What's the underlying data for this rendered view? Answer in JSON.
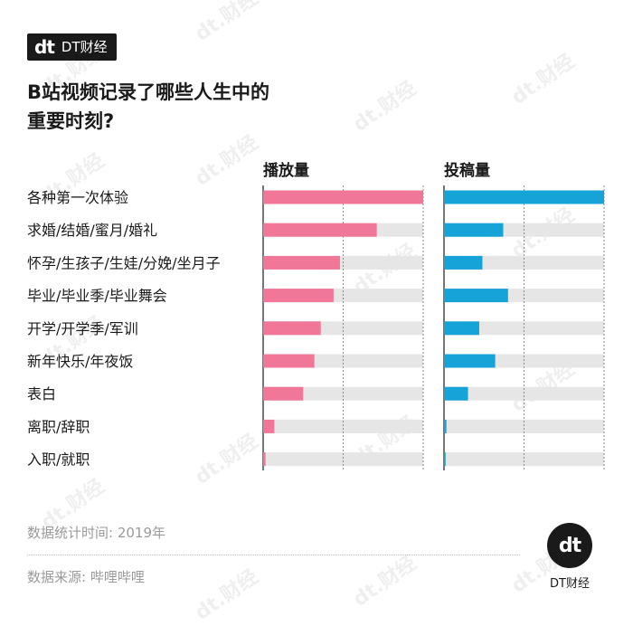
{
  "brand": {
    "mark": "dt",
    "name": "DT财经"
  },
  "title_lines": [
    "B站视频记录了哪些人生中的",
    "重要时刻?"
  ],
  "watermark": "dt.财经",
  "chart_data": {
    "type": "bar",
    "categories": [
      "各种第一次体验",
      "求婚/结婚/蜜月/婚礼",
      "怀孕/生孩子/生娃/分娩/坐月子",
      "毕业/毕业季/毕业舞会",
      "开学/开学季/军训",
      "新年快乐/年夜饭",
      "表白",
      "离职/辞职",
      "入职/就职"
    ],
    "series": [
      {
        "name": "播放量",
        "color": "#f07797",
        "values": [
          1.0,
          0.71,
          0.48,
          0.44,
          0.36,
          0.32,
          0.25,
          0.07,
          0.015
        ]
      },
      {
        "name": "投稿量",
        "color": "#16a3d8",
        "values": [
          1.0,
          0.37,
          0.24,
          0.4,
          0.22,
          0.32,
          0.15,
          0.015,
          0.01
        ]
      }
    ],
    "track_color": "#e6e6e6",
    "xlim": [
      0,
      1
    ],
    "grid": true
  },
  "footer": {
    "stat_time": "数据统计时间: 2019年",
    "source": "数据来源: 哔哩哔哩"
  }
}
